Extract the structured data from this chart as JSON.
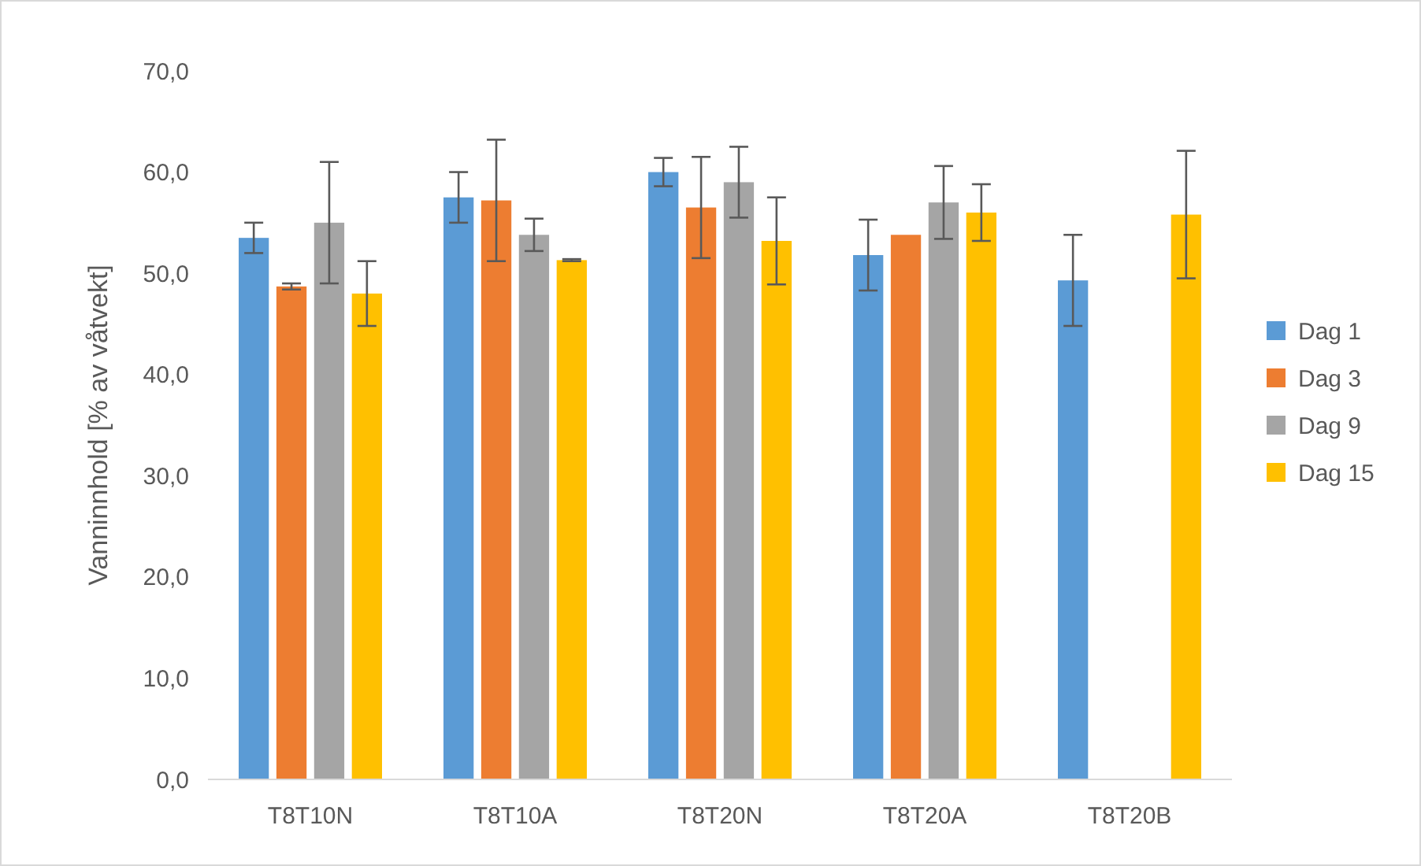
{
  "chart_data": {
    "type": "bar",
    "ylabel": "Vanninnhold [% av våtvekt]",
    "categories": [
      "T8T10N",
      "T8T10A",
      "T8T20N",
      "T8T20A",
      "T8T20B"
    ],
    "series": [
      {
        "name": "Dag 1",
        "color": "#5b9bd5",
        "values": [
          53.5,
          57.5,
          60.0,
          51.8,
          49.3
        ],
        "errors": [
          1.5,
          2.5,
          1.4,
          3.5,
          4.5
        ]
      },
      {
        "name": "Dag 3",
        "color": "#ed7d31",
        "values": [
          48.7,
          57.2,
          56.5,
          53.8,
          null
        ],
        "errors": [
          0.3,
          6.0,
          5.0,
          null,
          null
        ]
      },
      {
        "name": "Dag 9",
        "color": "#a5a5a5",
        "values": [
          55.0,
          53.8,
          59.0,
          57.0,
          null
        ],
        "errors": [
          6.0,
          1.6,
          3.5,
          3.6,
          null
        ]
      },
      {
        "name": "Dag 15",
        "color": "#ffc000",
        "values": [
          48.0,
          51.3,
          53.2,
          56.0,
          55.8
        ],
        "errors": [
          3.2,
          0.1,
          4.3,
          2.8,
          6.3
        ]
      }
    ],
    "ylim": [
      0,
      70
    ],
    "yticks": [
      {
        "value": 0,
        "label": "0,0"
      },
      {
        "value": 10,
        "label": "10,0"
      },
      {
        "value": 20,
        "label": "20,0"
      },
      {
        "value": 30,
        "label": "30,0"
      },
      {
        "value": 40,
        "label": "40,0"
      },
      {
        "value": 50,
        "label": "50,0"
      },
      {
        "value": 60,
        "label": "60,0"
      },
      {
        "value": 70,
        "label": "70,0"
      }
    ],
    "grid": false,
    "legend": "right"
  }
}
